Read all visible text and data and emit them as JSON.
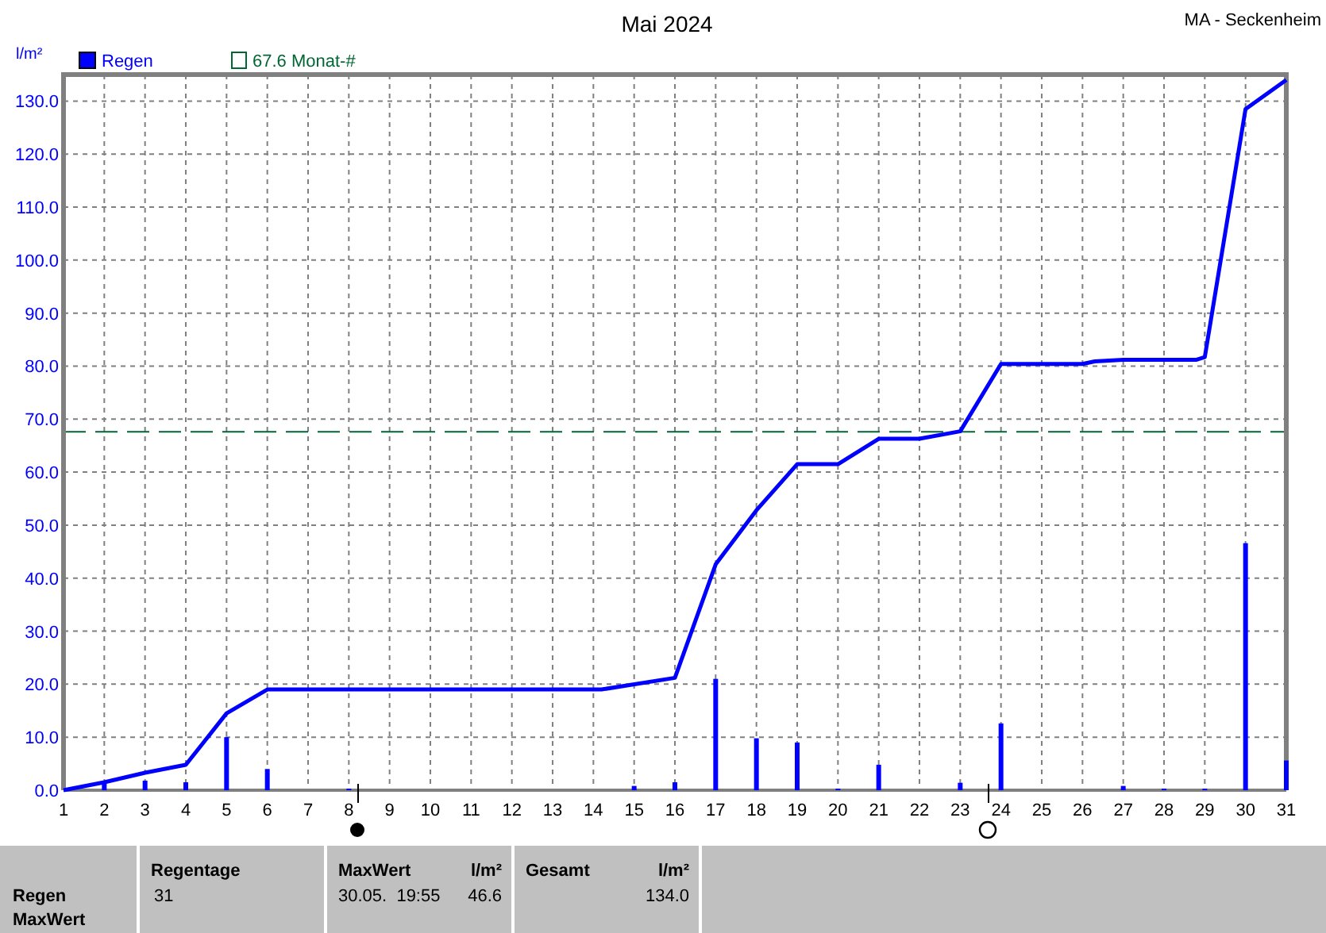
{
  "chart_data": {
    "type": "bar",
    "title": "Mai 2024",
    "subtitle": "MA - Seckenheim",
    "ylabel": "l/m²",
    "x": [
      1,
      2,
      3,
      4,
      5,
      6,
      8,
      15,
      16,
      17,
      18,
      19,
      20,
      21,
      23,
      24,
      27,
      28,
      29,
      30,
      31
    ],
    "series": [
      {
        "name": "Regen",
        "color": "#0000ff",
        "values": [
          0,
          1.5,
          1.8,
          1.5,
          10,
          4,
          0.3,
          0.8,
          1.5,
          21,
          9.8,
          9,
          0.3,
          4.8,
          1.4,
          12.6,
          0.8,
          0.3,
          0.3,
          46.6,
          5.6
        ]
      },
      {
        "type": "line",
        "color": "#0000ff",
        "x": [
          1,
          2,
          3,
          4,
          5,
          6,
          14.2,
          16,
          17,
          18,
          19,
          20,
          21,
          22,
          23,
          24,
          26,
          26.3,
          27,
          28.8,
          29,
          30,
          31
        ],
        "values": [
          0,
          1.5,
          3.3,
          4.8,
          14.5,
          19,
          19,
          21.2,
          42.6,
          52.8,
          61.5,
          61.5,
          66.3,
          66.3,
          67.7,
          80.4,
          80.4,
          80.9,
          81.2,
          81.2,
          81.7,
          128.5,
          134
        ]
      }
    ],
    "xlim": [
      1,
      31
    ],
    "xticks": [
      1,
      2,
      3,
      4,
      5,
      6,
      7,
      8,
      9,
      10,
      11,
      12,
      13,
      14,
      15,
      16,
      17,
      18,
      19,
      20,
      21,
      22,
      23,
      24,
      25,
      26,
      27,
      28,
      29,
      30,
      31
    ],
    "ylim": [
      0,
      135
    ],
    "yticks": [
      {
        "value": 0,
        "label": "0.0"
      },
      {
        "value": 10,
        "label": "10.0"
      },
      {
        "value": 20,
        "label": "20.0"
      },
      {
        "value": 30,
        "label": "30.0"
      },
      {
        "value": 40,
        "label": "40.0"
      },
      {
        "value": 50,
        "label": "50.0"
      },
      {
        "value": 60,
        "label": "60.0"
      },
      {
        "value": 70,
        "label": "70.0"
      },
      {
        "value": 80,
        "label": "80.0"
      },
      {
        "value": 90,
        "label": "90.0"
      },
      {
        "value": 100,
        "label": "100.0"
      },
      {
        "value": 110,
        "label": "110.0"
      },
      {
        "value": 120,
        "label": "120.0"
      },
      {
        "value": 130,
        "label": "130.0"
      }
    ],
    "ref_lines": [
      {
        "axis": "y",
        "value": 67.6,
        "label": "67.6 Monat-#",
        "color": "#006633",
        "line_style": "dashed"
      }
    ],
    "grid": true,
    "legend": "top left",
    "marker": "none",
    "annotations": [
      "Regen",
      "MaxWert",
      "Regentage",
      "31",
      "MaxWert",
      "l/m²",
      "30.05.  19:55",
      "46.6",
      "Gesamt",
      "l/m²",
      "134.0"
    ]
  }
}
